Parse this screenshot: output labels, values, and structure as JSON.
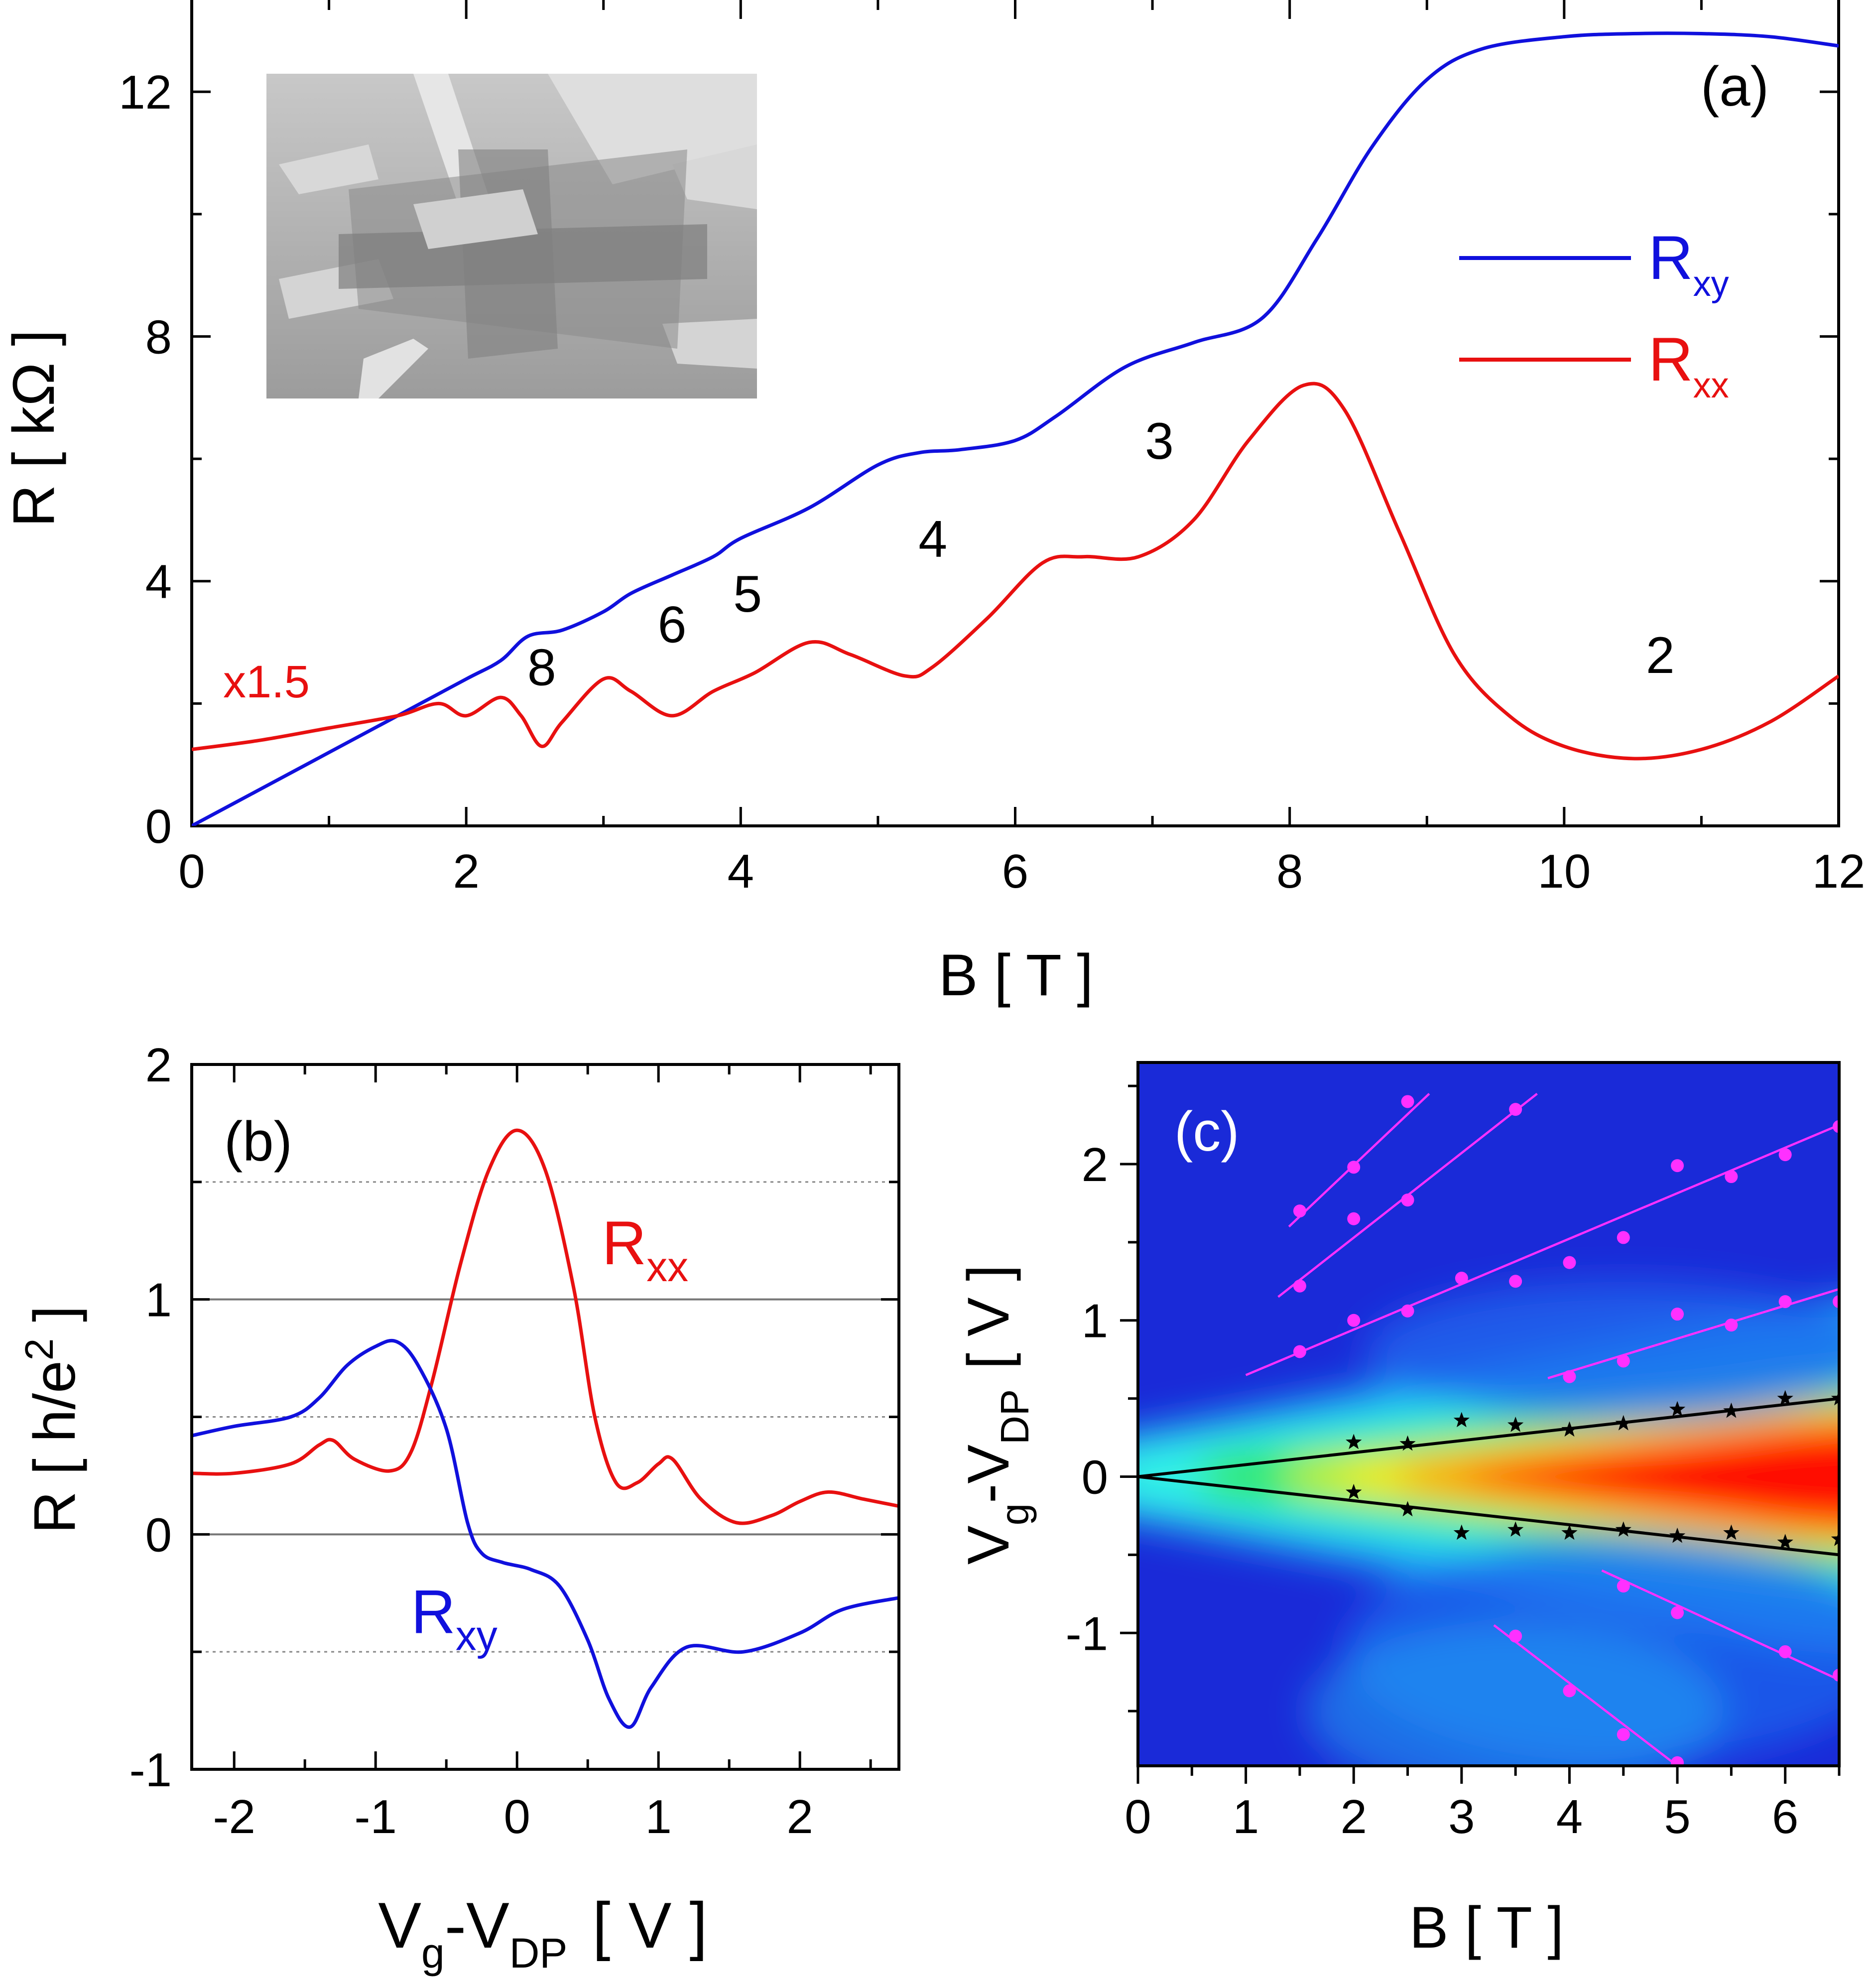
{
  "chart_data": [
    {
      "panel": "(a)",
      "type": "line",
      "xlabel": "B  [ T ]",
      "ylabel": "R  [ kΩ ]",
      "xlim": [
        0,
        12
      ],
      "ylim": [
        0,
        13.5
      ],
      "xticks": [
        0,
        2,
        4,
        6,
        8,
        10,
        12
      ],
      "yticks": [
        0,
        4,
        8,
        12
      ],
      "legend": {
        "position": "right",
        "entries": [
          {
            "name": "R",
            "sub": "xy",
            "color": "#1010dd"
          },
          {
            "name": "R",
            "sub": "xx",
            "color": "#e81010"
          }
        ]
      },
      "scale_note": "x1.5",
      "inset": "SEM image of Hall bar device",
      "annotations": [
        {
          "text": "8",
          "x": 2.55,
          "y": 2.3
        },
        {
          "text": "6",
          "x": 3.5,
          "y": 3.0
        },
        {
          "text": "5",
          "x": 4.05,
          "y": 3.5
        },
        {
          "text": "4",
          "x": 5.4,
          "y": 4.4
        },
        {
          "text": "3",
          "x": 7.05,
          "y": 6.0
        },
        {
          "text": "2",
          "x": 10.7,
          "y": 2.5
        }
      ],
      "series": [
        {
          "name": "Rxy",
          "color": "#1010dd",
          "x": [
            0,
            0.5,
            1.0,
            1.5,
            2.0,
            2.25,
            2.45,
            2.7,
            3.0,
            3.2,
            3.5,
            3.8,
            4.0,
            4.5,
            5.0,
            5.3,
            5.6,
            6.0,
            6.3,
            6.8,
            7.3,
            7.8,
            8.2,
            8.6,
            9.0,
            9.4,
            10.0,
            10.5,
            11.0,
            11.5,
            12.0
          ],
          "y": [
            0,
            0.6,
            1.2,
            1.8,
            2.4,
            2.7,
            3.1,
            3.2,
            3.5,
            3.8,
            4.1,
            4.4,
            4.7,
            5.2,
            5.9,
            6.1,
            6.15,
            6.3,
            6.7,
            7.5,
            7.9,
            8.3,
            9.6,
            11.1,
            12.2,
            12.7,
            12.9,
            12.95,
            12.95,
            12.9,
            12.75
          ]
        },
        {
          "name": "Rxx",
          "color": "#e81010",
          "x": [
            0,
            0.5,
            1.0,
            1.5,
            1.8,
            2.0,
            2.25,
            2.4,
            2.55,
            2.7,
            3.0,
            3.2,
            3.5,
            3.8,
            4.1,
            4.5,
            4.8,
            5.2,
            5.4,
            5.8,
            6.2,
            6.5,
            6.9,
            7.3,
            7.7,
            8.1,
            8.4,
            8.8,
            9.2,
            9.6,
            10.0,
            10.5,
            11.0,
            11.5,
            12.0
          ],
          "y": [
            1.25,
            1.4,
            1.6,
            1.8,
            2.0,
            1.8,
            2.1,
            1.8,
            1.3,
            1.7,
            2.4,
            2.2,
            1.8,
            2.2,
            2.5,
            3.0,
            2.8,
            2.45,
            2.6,
            3.4,
            4.3,
            4.4,
            4.4,
            5.0,
            6.3,
            7.2,
            6.8,
            4.8,
            2.8,
            1.8,
            1.3,
            1.1,
            1.25,
            1.7,
            2.45
          ]
        }
      ]
    },
    {
      "panel": "(b)",
      "type": "line",
      "xlabel": "V",
      "xlabel_sub1": "g",
      "xlabel_mid": "-V",
      "xlabel_sub2": "DP",
      "xlabel_unit": "[ V ]",
      "ylabel": "R  [ h/e",
      "ylabel_sup": "2",
      "ylabel_end": " ]",
      "xlim": [
        -2.3,
        2.7
      ],
      "ylim": [
        -1,
        2
      ],
      "xticks": [
        -2,
        -1,
        0,
        1,
        2
      ],
      "yticks": [
        -1,
        0,
        1,
        2
      ],
      "reference_lines_solid": [
        0,
        1
      ],
      "reference_lines_dotted": [
        -0.5,
        0.5,
        1.5
      ],
      "series": [
        {
          "name": "R",
          "sub": "xx",
          "color": "#e81010",
          "label_x": 0.6,
          "label_y": 1.15,
          "x": [
            -2.3,
            -2.0,
            -1.6,
            -1.4,
            -1.3,
            -1.15,
            -0.9,
            -0.75,
            -0.6,
            -0.4,
            -0.2,
            0.0,
            0.2,
            0.4,
            0.55,
            0.7,
            0.85,
            1.0,
            1.1,
            1.3,
            1.55,
            1.8,
            2.0,
            2.2,
            2.45,
            2.7
          ],
          "y": [
            0.26,
            0.26,
            0.3,
            0.38,
            0.4,
            0.32,
            0.27,
            0.35,
            0.65,
            1.15,
            1.55,
            1.72,
            1.55,
            1.05,
            0.5,
            0.22,
            0.22,
            0.3,
            0.32,
            0.15,
            0.05,
            0.08,
            0.14,
            0.18,
            0.15,
            0.12
          ]
        },
        {
          "name": "R",
          "sub": "xy",
          "color": "#1010dd",
          "label_x": -0.75,
          "label_y": -0.42,
          "x": [
            -2.3,
            -2.0,
            -1.6,
            -1.4,
            -1.2,
            -1.0,
            -0.85,
            -0.7,
            -0.5,
            -0.35,
            -0.25,
            -0.1,
            0.1,
            0.3,
            0.5,
            0.65,
            0.8,
            0.95,
            1.2,
            1.6,
            2.0,
            2.3,
            2.7
          ],
          "y": [
            0.42,
            0.46,
            0.5,
            0.58,
            0.72,
            0.8,
            0.82,
            0.72,
            0.45,
            0.05,
            -0.08,
            -0.12,
            -0.15,
            -0.22,
            -0.45,
            -0.7,
            -0.82,
            -0.65,
            -0.48,
            -0.5,
            -0.42,
            -0.32,
            -0.27
          ]
        }
      ]
    },
    {
      "panel": "(c)",
      "type": "heatmap",
      "xlabel": "B  [ T ]",
      "ylabel": "V",
      "ylabel_sub1": "g",
      "ylabel_mid": "-V",
      "ylabel_sub2": "DP",
      "ylabel_unit": "[ V ]",
      "xlim": [
        0,
        6.5
      ],
      "ylim": [
        -1.85,
        2.65
      ],
      "xticks": [
        0,
        1,
        2,
        3,
        4,
        5,
        6
      ],
      "yticks": [
        -1,
        0,
        1,
        2
      ],
      "black_lines": [
        {
          "x": [
            0,
            6.5
          ],
          "y": [
            0,
            0.5
          ]
        },
        {
          "x": [
            0,
            6.5
          ],
          "y": [
            0,
            -0.5
          ]
        }
      ],
      "black_stars": {
        "x": [
          2,
          2.5,
          3,
          3.5,
          4,
          4.5,
          5,
          5.5,
          6,
          6.5,
          2,
          2.5,
          3,
          3.5,
          4,
          4.5,
          5,
          5.5,
          6,
          6.5
        ],
        "y": [
          0.22,
          0.21,
          0.36,
          0.33,
          0.3,
          0.34,
          0.43,
          0.42,
          0.5,
          0.5,
          -0.1,
          -0.21,
          -0.36,
          -0.34,
          -0.36,
          -0.34,
          -0.38,
          -0.36,
          -0.42,
          -0.4
        ]
      },
      "magenta_lines": [
        {
          "x": [
            1.4,
            2.7
          ],
          "y": [
            1.6,
            2.45
          ]
        },
        {
          "x": [
            1.3,
            3.7
          ],
          "y": [
            1.15,
            2.45
          ]
        },
        {
          "x": [
            1.0,
            6.5
          ],
          "y": [
            0.65,
            2.25
          ]
        },
        {
          "x": [
            3.8,
            6.5
          ],
          "y": [
            0.63,
            1.2
          ]
        },
        {
          "x": [
            4.3,
            6.5
          ],
          "y": [
            -0.6,
            -1.3
          ]
        },
        {
          "x": [
            3.3,
            5.0
          ],
          "y": [
            -0.95,
            -1.85
          ]
        }
      ],
      "magenta_points": {
        "x": [
          1.5,
          2,
          2.5,
          3.5,
          1.5,
          2,
          2.5,
          3,
          3.5,
          4,
          4.5,
          5,
          5.5,
          6,
          6.5,
          1.5,
          2,
          2.5,
          4,
          4.5,
          5,
          5.5,
          6,
          6.5,
          4.5,
          5,
          6,
          6.5,
          3.5,
          4,
          4.5,
          5
        ],
        "y": [
          1.7,
          1.98,
          2.4,
          2.35,
          1.22,
          1.65,
          1.77,
          1.27,
          1.25,
          1.37,
          1.53,
          1.99,
          1.92,
          2.06,
          2.24,
          0.8,
          1.0,
          1.06,
          0.64,
          0.74,
          1.04,
          0.97,
          1.12,
          1.12,
          -0.7,
          -0.87,
          -1.12,
          -1.27,
          -1.02,
          -1.37,
          -1.65,
          -1.83
        ]
      },
      "colorscale": [
        "#1a2ad8",
        "#1e66ee",
        "#1fb0f5",
        "#33f0e6",
        "#33e868",
        "#c8f020",
        "#fff018",
        "#ff9000",
        "#ff1000"
      ]
    }
  ]
}
